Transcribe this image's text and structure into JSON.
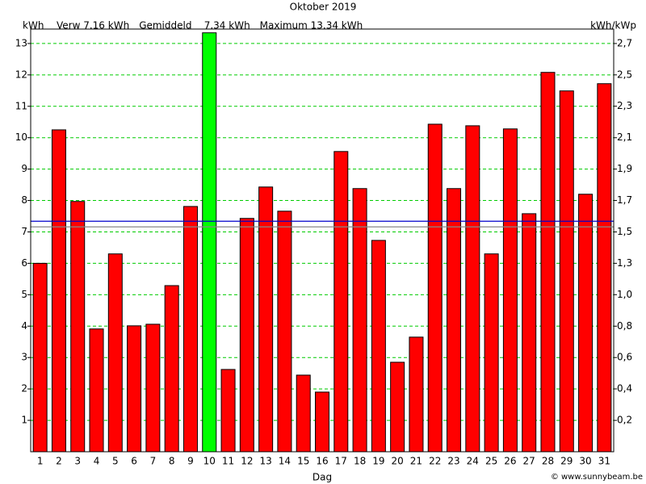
{
  "chart_data": {
    "type": "bar",
    "title": "Oktober 2019",
    "y_label": "kWh",
    "y2_label": "kWh/kWp",
    "x_label": "Dag",
    "footer": "© www.sunnybeam.be",
    "categories": [
      "1",
      "2",
      "3",
      "4",
      "5",
      "6",
      "7",
      "8",
      "9",
      "10",
      "11",
      "12",
      "13",
      "14",
      "15",
      "16",
      "17",
      "18",
      "19",
      "20",
      "21",
      "22",
      "23",
      "24",
      "25",
      "26",
      "27",
      "28",
      "29",
      "30",
      "31"
    ],
    "values": [
      6.0,
      10.25,
      7.97,
      3.91,
      6.3,
      4.01,
      4.06,
      5.29,
      7.81,
      13.34,
      2.62,
      7.43,
      8.43,
      7.66,
      2.44,
      1.9,
      9.56,
      8.38,
      6.73,
      2.85,
      3.65,
      10.43,
      8.38,
      10.38,
      6.3,
      10.28,
      7.58,
      12.08,
      11.49,
      8.2,
      11.72
    ],
    "color": "#ff0000",
    "highlight_color": "#00ff00",
    "reference_lines": [
      {
        "label": "Verw 7.16 kWh",
        "value": 7.16,
        "color": "#888888"
      },
      {
        "label": "Gemiddeld    7.34 kWh",
        "value": 7.34,
        "color": "#0000cc"
      },
      {
        "label": "Maximum 13.34 kWh",
        "value": 13.34,
        "color": "#00dd00"
      }
    ],
    "ylim": [
      0,
      13.46
    ],
    "yticks": [
      1,
      2,
      3,
      4,
      5,
      6,
      7,
      8,
      9,
      10,
      11,
      12,
      13
    ],
    "y2lim": [
      0,
      2.804
    ],
    "y2ticks": [
      {
        "value": 0.208,
        "label": "0,2"
      },
      {
        "value": 0.417,
        "label": "0,4"
      },
      {
        "value": 0.625,
        "label": "0,6"
      },
      {
        "value": 0.833,
        "label": "0,8"
      },
      {
        "value": 1.042,
        "label": "1,0"
      },
      {
        "value": 1.25,
        "label": "1,3"
      },
      {
        "value": 1.458,
        "label": "1,5"
      },
      {
        "value": 1.667,
        "label": "1,7"
      },
      {
        "value": 1.875,
        "label": "1,9"
      },
      {
        "value": 2.083,
        "label": "2,1"
      },
      {
        "value": 2.292,
        "label": "2,3"
      },
      {
        "value": 2.5,
        "label": "2,5"
      },
      {
        "value": 2.708,
        "label": "2,7"
      }
    ],
    "grid": true,
    "grid_color": "#00cc00"
  }
}
